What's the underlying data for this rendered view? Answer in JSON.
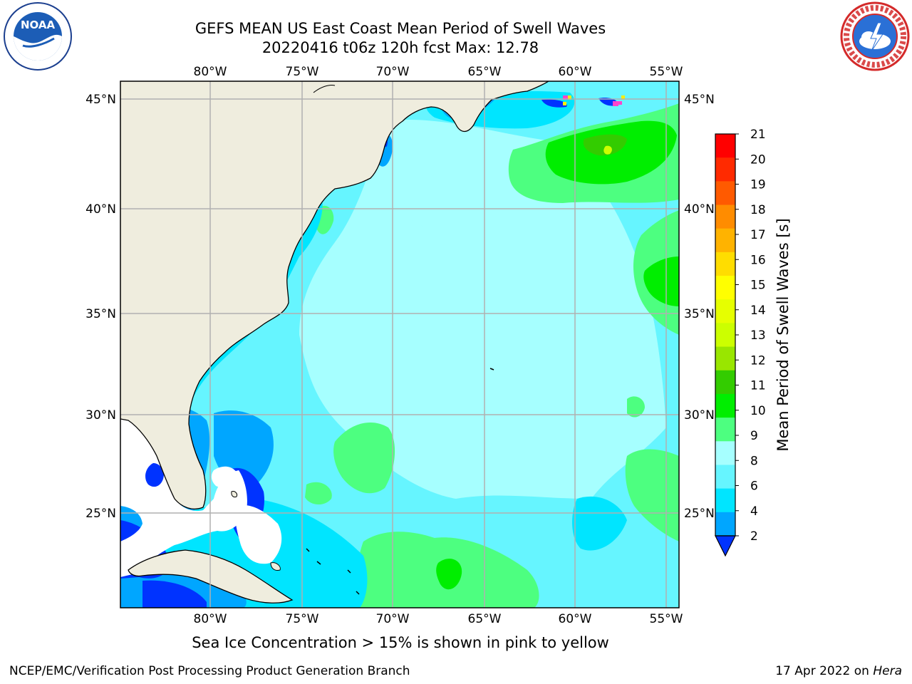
{
  "header": {
    "title_line1": "GEFS MEAN US East Coast Mean Period of Swell Waves",
    "title_line2": "20220416 t06z 120h fcst   Max: 12.78"
  },
  "logos": {
    "left": "NOAA",
    "right": "NATIONAL WEATHER SERVICE"
  },
  "map": {
    "lon_labels": [
      "80°W",
      "75°W",
      "70°W",
      "65°W",
      "60°W",
      "55°W"
    ],
    "lat_labels": [
      "45°N",
      "40°N",
      "35°N",
      "30°N",
      "25°N"
    ]
  },
  "colorbar": {
    "label": "Mean Period of Swell Waves [s]",
    "ticks": [
      "2",
      "4",
      "6",
      "8",
      "9",
      "10",
      "11",
      "12",
      "13",
      "14",
      "15",
      "16",
      "17",
      "18",
      "19",
      "20",
      "21"
    ],
    "colors": [
      "#0033ff",
      "#00a6ff",
      "#00e5ff",
      "#66f5ff",
      "#a6ffff",
      "#4dff80",
      "#00ee00",
      "#33cc00",
      "#99e600",
      "#ccff00",
      "#e6ff00",
      "#ffff00",
      "#ffdd00",
      "#ffb300",
      "#ff8c00",
      "#ff5a00",
      "#ff2a00",
      "#ff0000"
    ]
  },
  "footer": {
    "note": "Sea Ice Concentration > 15% is shown in pink to yellow",
    "credit": "NCEP/EMC/Verification Post Processing Product Generation Branch",
    "date_text": "17 Apr 2022 on ",
    "machine": "Hera"
  }
}
